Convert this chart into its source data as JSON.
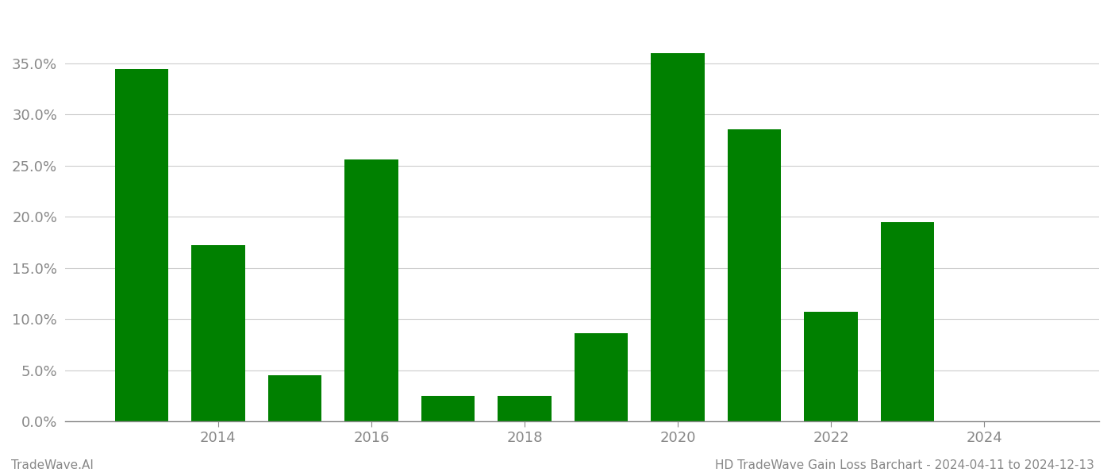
{
  "values": [
    0.344,
    0.172,
    0.045,
    0.256,
    0.025,
    0.086,
    0.36,
    0.285,
    0.107,
    0.195
  ],
  "all_years": [
    2013,
    2014,
    2015,
    2016,
    2017,
    2018,
    2019,
    2020,
    2021,
    2022,
    2023
  ],
  "all_values": [
    0.344,
    0.172,
    0.045,
    0.256,
    0.025,
    0.025,
    0.086,
    0.36,
    0.285,
    0.107,
    0.195
  ],
  "bar_color": "#008000",
  "background_color": "#ffffff",
  "title": "HD TradeWave Gain Loss Barchart - 2024-04-11 to 2024-12-13",
  "footer_left": "TradeWave.AI",
  "xlim": [
    2012.0,
    2025.5
  ],
  "ylim": [
    0,
    0.4
  ],
  "yticks": [
    0.0,
    0.05,
    0.1,
    0.15,
    0.2,
    0.25,
    0.3,
    0.35
  ],
  "xticks": [
    2014,
    2016,
    2018,
    2020,
    2022,
    2024
  ],
  "xtick_labels": [
    "2014",
    "2016",
    "2018",
    "2020",
    "2022",
    "2024"
  ],
  "grid_color": "#cccccc",
  "axis_color": "#888888",
  "tick_label_color": "#888888",
  "title_color": "#888888",
  "footer_color": "#888888",
  "title_fontsize": 11,
  "tick_fontsize": 13,
  "footer_fontsize": 11,
  "bar_width": 0.7
}
